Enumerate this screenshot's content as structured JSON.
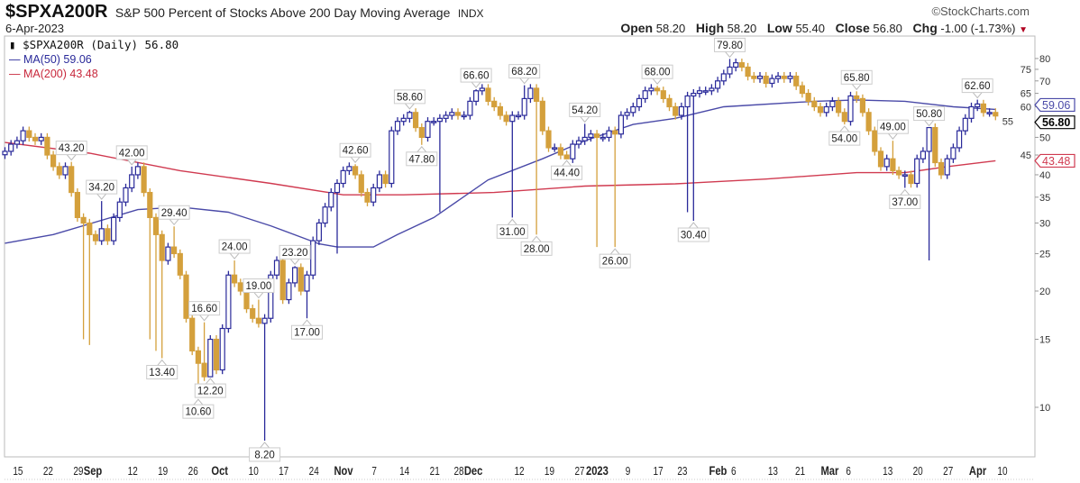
{
  "header": {
    "symbol": "$SPXA200R",
    "description": "S&P 500 Percent of Stocks Above 200 Day Moving Average",
    "exchange": "INDX",
    "date": "6-Apr-2023",
    "copyright": "©StockCharts.com",
    "open_label": "Open",
    "open": "58.20",
    "high_label": "High",
    "high": "58.20",
    "low_label": "Low",
    "low": "55.40",
    "close_label": "Close",
    "close": "56.80",
    "chg_label": "Chg",
    "chg": "-1.00 (-1.73%)",
    "chg_icon": "down-triangle-icon"
  },
  "legend": {
    "price": "$SPXA200R (Daily) 56.80",
    "ma50": "MA(50) 59.06",
    "ma200": "MA(200) 43.48"
  },
  "colors": {
    "up": "#2a2a9a",
    "down": "#d4a03c",
    "ma50": "#4a4aa8",
    "ma200": "#d03a50"
  },
  "chart_data": {
    "type": "candlestick",
    "scale": "log",
    "ylim": [
      7,
      85
    ],
    "y_ticks": [
      10,
      15,
      20,
      25,
      30,
      35,
      40,
      45,
      50,
      55,
      60,
      65,
      70,
      75,
      80
    ],
    "closes": [
      46,
      48,
      49,
      52,
      50,
      49,
      50,
      45,
      42,
      40,
      42,
      36,
      31,
      30,
      28,
      27,
      29,
      27,
      31,
      34,
      37,
      40,
      42,
      36,
      31,
      28,
      24,
      26,
      25,
      22,
      17,
      14,
      13,
      12,
      15,
      12.5,
      16,
      22,
      21,
      20,
      18,
      17,
      16.5,
      17,
      22,
      24,
      19,
      21,
      23,
      20,
      22,
      27,
      30,
      33,
      36,
      38,
      41,
      42,
      40,
      36,
      34,
      37,
      40,
      38,
      52,
      55,
      56,
      58,
      53,
      50,
      55,
      55,
      56,
      57,
      58,
      57,
      57,
      62,
      66,
      67,
      62,
      60,
      57,
      55,
      57,
      57,
      63,
      67,
      62,
      52,
      47,
      47,
      45,
      44,
      48,
      49,
      50,
      51,
      50,
      50,
      52,
      51,
      57,
      58,
      60,
      63,
      66,
      67,
      66,
      63,
      60,
      57,
      60,
      64,
      65,
      66,
      66,
      67,
      70,
      73,
      76,
      78,
      76,
      72,
      71,
      72,
      69,
      71,
      72,
      71,
      72,
      68,
      65,
      62,
      60,
      58,
      60,
      62,
      58,
      55,
      64,
      63,
      58,
      52,
      46,
      42,
      44,
      41,
      40,
      40,
      38,
      44,
      46,
      53,
      43,
      40,
      44,
      47,
      52,
      56,
      60,
      61,
      58,
      58,
      56.8
    ],
    "extra_lows": [
      [
        13,
        15
      ],
      [
        14,
        14.5
      ],
      [
        24,
        15
      ],
      [
        25,
        14
      ],
      [
        55,
        25
      ],
      [
        72,
        32
      ],
      [
        98,
        26
      ],
      [
        113,
        32
      ],
      [
        153,
        24
      ]
    ],
    "annotations": [
      {
        "i": 11,
        "v": "43.20",
        "pos": "above"
      },
      {
        "i": 16,
        "v": "34.20",
        "pos": "above"
      },
      {
        "i": 21,
        "v": "42.00",
        "pos": "above"
      },
      {
        "i": 26,
        "v": "13.40",
        "pos": "below"
      },
      {
        "i": 28,
        "v": "29.40",
        "pos": "above"
      },
      {
        "i": 32,
        "v": "10.60",
        "pos": "below"
      },
      {
        "i": 33,
        "v": "16.60",
        "pos": "above"
      },
      {
        "i": 34,
        "v": "12.20",
        "pos": "below"
      },
      {
        "i": 38,
        "v": "24.00",
        "pos": "above"
      },
      {
        "i": 42,
        "v": "19.00",
        "pos": "above"
      },
      {
        "i": 43,
        "v": "8.20",
        "pos": "below"
      },
      {
        "i": 48,
        "v": "23.20",
        "pos": "above"
      },
      {
        "i": 50,
        "v": "17.00",
        "pos": "below"
      },
      {
        "i": 58,
        "v": "42.60",
        "pos": "above"
      },
      {
        "i": 67,
        "v": "58.60",
        "pos": "above"
      },
      {
        "i": 69,
        "v": "47.80",
        "pos": "below"
      },
      {
        "i": 78,
        "v": "66.60",
        "pos": "above"
      },
      {
        "i": 84,
        "v": "31.00",
        "pos": "below"
      },
      {
        "i": 86,
        "v": "68.20",
        "pos": "above"
      },
      {
        "i": 88,
        "v": "28.00",
        "pos": "below"
      },
      {
        "i": 93,
        "v": "44.40",
        "pos": "below"
      },
      {
        "i": 96,
        "v": "54.20",
        "pos": "above"
      },
      {
        "i": 101,
        "v": "26.00",
        "pos": "below"
      },
      {
        "i": 108,
        "v": "68.00",
        "pos": "above"
      },
      {
        "i": 114,
        "v": "30.40",
        "pos": "below"
      },
      {
        "i": 120,
        "v": "79.80",
        "pos": "above"
      },
      {
        "i": 139,
        "v": "54.00",
        "pos": "below"
      },
      {
        "i": 141,
        "v": "65.80",
        "pos": "above"
      },
      {
        "i": 147,
        "v": "49.00",
        "pos": "above"
      },
      {
        "i": 149,
        "v": "37.00",
        "pos": "below"
      },
      {
        "i": 153,
        "v": "50.80",
        "pos": "above"
      },
      {
        "i": 161,
        "v": "62.60",
        "pos": "above"
      }
    ],
    "ma50": [
      [
        0,
        26.6
      ],
      [
        8,
        28
      ],
      [
        22,
        32.5
      ],
      [
        29,
        33
      ],
      [
        37,
        32
      ],
      [
        44,
        29.5
      ],
      [
        52,
        26.5
      ],
      [
        55,
        26
      ],
      [
        61,
        26
      ],
      [
        65,
        28
      ],
      [
        71,
        31
      ],
      [
        80,
        38.8
      ],
      [
        89,
        44
      ],
      [
        96,
        49
      ],
      [
        104,
        54
      ],
      [
        111,
        56
      ],
      [
        119,
        60
      ],
      [
        134,
        62
      ],
      [
        141,
        62.5
      ],
      [
        149,
        62
      ],
      [
        157,
        60
      ],
      [
        164,
        59.06
      ]
    ],
    "ma200": [
      [
        0,
        48.5
      ],
      [
        14,
        45.5
      ],
      [
        29,
        41
      ],
      [
        44,
        38
      ],
      [
        56,
        35.5
      ],
      [
        66,
        35.5
      ],
      [
        81,
        36
      ],
      [
        96,
        37.4
      ],
      [
        111,
        37.9
      ],
      [
        126,
        39
      ],
      [
        141,
        40.5
      ],
      [
        149,
        40.5
      ],
      [
        156,
        42
      ],
      [
        164,
        43.48
      ]
    ],
    "badges": [
      {
        "v": "59.06",
        "kind": "ma50"
      },
      {
        "v": "56.80",
        "kind": "price"
      },
      {
        "v": "43.48",
        "kind": "ma200"
      }
    ],
    "x_labels": [
      {
        "i": 2,
        "t": "15"
      },
      {
        "i": 7,
        "t": "22"
      },
      {
        "i": 12,
        "t": "29"
      },
      {
        "i": 15,
        "t": "Sep",
        "bold": true
      },
      {
        "i": 21,
        "t": "12"
      },
      {
        "i": 26,
        "t": "19"
      },
      {
        "i": 31,
        "t": "26"
      },
      {
        "i": 36,
        "t": "Oct",
        "bold": true
      },
      {
        "i": 41,
        "t": "10"
      },
      {
        "i": 46,
        "t": "17"
      },
      {
        "i": 51,
        "t": "24"
      },
      {
        "i": 56.5,
        "t": "Nov",
        "bold": true
      },
      {
        "i": 61,
        "t": "7"
      },
      {
        "i": 66,
        "t": "14"
      },
      {
        "i": 71,
        "t": "21"
      },
      {
        "i": 75,
        "t": "28"
      },
      {
        "i": 78,
        "t": "Dec",
        "bold": true
      },
      {
        "i": 85,
        "t": "12"
      },
      {
        "i": 90,
        "t": "19"
      },
      {
        "i": 95,
        "t": "27"
      },
      {
        "i": 98.5,
        "t": "2023",
        "bold": true
      },
      {
        "i": 103,
        "t": "9"
      },
      {
        "i": 108,
        "t": "17"
      },
      {
        "i": 112,
        "t": "23"
      },
      {
        "i": 118.5,
        "t": "Feb",
        "bold": true
      },
      {
        "i": 120.5,
        "t": "6"
      },
      {
        "i": 127,
        "t": "13"
      },
      {
        "i": 131.5,
        "t": "21"
      },
      {
        "i": 137,
        "t": "Mar",
        "bold": true
      },
      {
        "i": 139.5,
        "t": "6"
      },
      {
        "i": 146,
        "t": "13"
      },
      {
        "i": 151,
        "t": "20"
      },
      {
        "i": 156,
        "t": "27"
      },
      {
        "i": 161.5,
        "t": "Apr",
        "bold": true
      },
      {
        "i": 165,
        "t": "10"
      }
    ]
  }
}
